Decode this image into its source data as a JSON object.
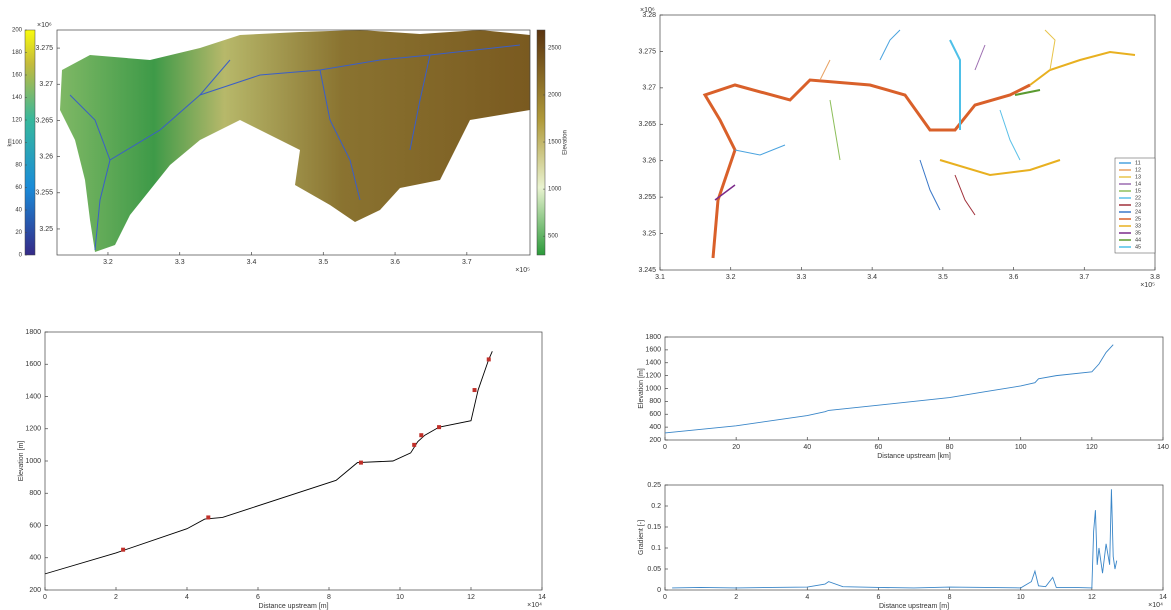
{
  "chart_data": [
    {
      "type": "map",
      "xlim": [
        3.129,
        3.788
      ],
      "xticks": [
        3.2,
        3.3,
        3.4,
        3.5,
        3.6,
        3.7
      ],
      "x_exponent": "×10⁵",
      "ylim": [
        3.2464,
        3.2775
      ],
      "yticks": [
        3.25,
        3.255,
        3.26,
        3.265,
        3.27,
        3.275
      ],
      "y_exponent": "×10⁶",
      "colorbars": [
        {
          "label": "km",
          "lim": [
            0,
            200
          ],
          "ticks": [
            0,
            20,
            40,
            60,
            80,
            100,
            120,
            140,
            160,
            180,
            200
          ]
        },
        {
          "label": "Elevation",
          "lim": [
            300,
            2690
          ],
          "ticks": [
            500,
            1000,
            1500,
            2000,
            2500
          ]
        }
      ]
    },
    {
      "type": "network",
      "xlim": [
        3.1,
        3.8
      ],
      "xticks": [
        3.1,
        3.2,
        3.3,
        3.4,
        3.5,
        3.6,
        3.7,
        3.8
      ],
      "x_exponent": "×10⁵",
      "ylim": [
        3.245,
        3.28
      ],
      "yticks": [
        3.245,
        3.25,
        3.255,
        3.26,
        3.265,
        3.27,
        3.275,
        3.28
      ],
      "y_exponent": "×10⁶",
      "series": [
        {
          "name": "11",
          "color": "#4aa3df"
        },
        {
          "name": "12",
          "color": "#e8a060"
        },
        {
          "name": "13",
          "color": "#e8c44a"
        },
        {
          "name": "14",
          "color": "#9b6bb0"
        },
        {
          "name": "15",
          "color": "#8dbf5a"
        },
        {
          "name": "22",
          "color": "#5bc0e8"
        },
        {
          "name": "23",
          "color": "#a0303a"
        },
        {
          "name": "24",
          "color": "#3a78c8"
        },
        {
          "name": "25",
          "color": "#d9602a"
        },
        {
          "name": "33",
          "color": "#e8b020"
        },
        {
          "name": "35",
          "color": "#7b2a8a"
        },
        {
          "name": "44",
          "color": "#5a9a30"
        },
        {
          "name": "45",
          "color": "#4ec0e8"
        }
      ]
    },
    {
      "type": "line",
      "xlabel": "Distance upstream [m]",
      "ylabel": "Elevation [m]",
      "xlim": [
        0,
        14
      ],
      "xticks": [
        0,
        2,
        4,
        6,
        8,
        10,
        12,
        14
      ],
      "x_exponent": "×10⁴",
      "ylim": [
        200,
        1800
      ],
      "yticks": [
        200,
        400,
        600,
        800,
        1000,
        1200,
        1400,
        1600,
        1800
      ],
      "series": [
        {
          "color": "#000000",
          "x": [
            0,
            2,
            4,
            4.5,
            5,
            8.2,
            8.8,
            9.8,
            10.3,
            10.5,
            10.7,
            11.1,
            12,
            12.2,
            12.5,
            12.6
          ],
          "values": [
            300,
            430,
            580,
            640,
            650,
            880,
            990,
            1000,
            1050,
            1120,
            1160,
            1210,
            1250,
            1440,
            1630,
            1680
          ]
        },
        {
          "color": "#c0302a",
          "marker": "square",
          "x": [
            2.2,
            4.6,
            8.9,
            10.4,
            10.6,
            11.1,
            12.1,
            12.5
          ],
          "values": [
            450,
            650,
            990,
            1100,
            1160,
            1210,
            1440,
            1630
          ]
        }
      ]
    },
    {
      "type": "line",
      "xlabel": "Distance upstream [km]",
      "ylabel": "Elevation [m]",
      "xlim": [
        0,
        140
      ],
      "xticks": [
        0,
        20,
        40,
        60,
        80,
        100,
        120,
        140
      ],
      "ylim": [
        200,
        1800
      ],
      "yticks": [
        200,
        400,
        600,
        800,
        1000,
        1200,
        1400,
        1600,
        1800
      ],
      "series": [
        {
          "color": "#3a86c8",
          "x": [
            0,
            20,
            40,
            45,
            46,
            60,
            80,
            90,
            100,
            104,
            105,
            110,
            120,
            122,
            124,
            126
          ],
          "values": [
            310,
            420,
            580,
            640,
            660,
            740,
            860,
            950,
            1040,
            1090,
            1150,
            1200,
            1260,
            1380,
            1560,
            1680
          ]
        }
      ]
    },
    {
      "type": "line",
      "xlabel": "Distance upstream [m]",
      "ylabel": "Gradient [-]",
      "xlim": [
        0,
        14
      ],
      "xticks": [
        0,
        2,
        4,
        6,
        8,
        10,
        12,
        14
      ],
      "x_exponent": "×10⁴",
      "ylim": [
        0,
        0.25
      ],
      "yticks": [
        0,
        0.05,
        0.1,
        0.15,
        0.2,
        0.25
      ],
      "series": [
        {
          "color": "#3a86c8",
          "x": [
            0.2,
            1,
            2,
            3,
            4,
            4.5,
            4.6,
            5,
            6,
            7,
            8,
            9,
            10,
            10.3,
            10.4,
            10.5,
            10.7,
            10.9,
            11,
            11.5,
            12,
            12.05,
            12.1,
            12.15,
            12.2,
            12.3,
            12.4,
            12.5,
            12.55,
            12.6,
            12.65,
            12.7
          ],
          "values": [
            0.005,
            0.006,
            0.005,
            0.006,
            0.007,
            0.014,
            0.02,
            0.008,
            0.006,
            0.005,
            0.007,
            0.006,
            0.005,
            0.02,
            0.045,
            0.01,
            0.008,
            0.03,
            0.006,
            0.006,
            0.005,
            0.14,
            0.19,
            0.06,
            0.1,
            0.04,
            0.11,
            0.06,
            0.24,
            0.08,
            0.05,
            0.07
          ]
        }
      ]
    }
  ]
}
